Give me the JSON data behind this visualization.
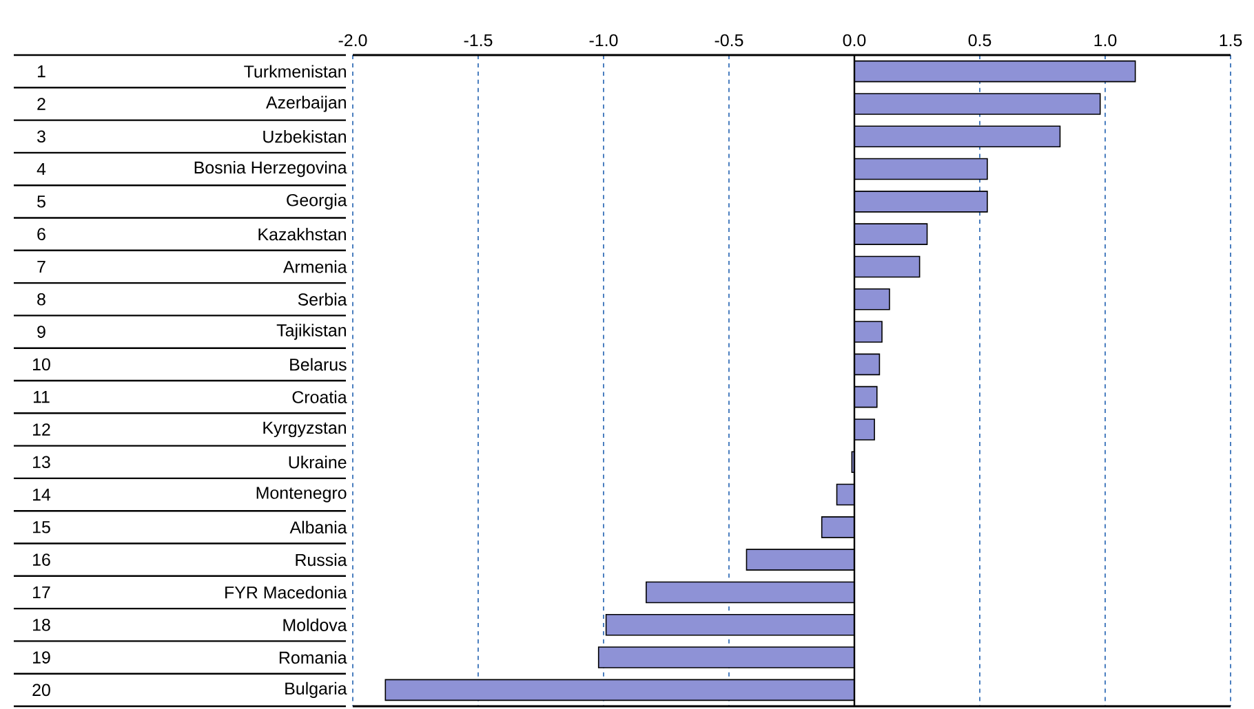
{
  "chart_data": {
    "type": "bar",
    "orientation": "horizontal",
    "categories": [
      "Turkmenistan",
      "Azerbaijan",
      "Uzbekistan",
      "Bosnia Herzegovina",
      "Georgia",
      "Kazakhstan",
      "Armenia",
      "Serbia",
      "Tajikistan",
      "Belarus",
      "Croatia",
      "Kyrgyzstan",
      "Ukraine",
      "Montenegro",
      "Albania",
      "Russia",
      "FYR Macedonia",
      "Moldova",
      "Romania",
      "Bulgaria"
    ],
    "values": [
      1.12,
      0.98,
      0.82,
      0.53,
      0.53,
      0.29,
      0.26,
      0.14,
      0.11,
      0.1,
      0.09,
      0.08,
      -0.01,
      -0.07,
      -0.13,
      -0.43,
      -0.83,
      -0.99,
      -1.02,
      -1.87
    ],
    "color": "#8e92d6",
    "xlim": [
      -2.0,
      1.5
    ],
    "xticks": [
      {
        "value": -2.0,
        "label": "-2.0"
      },
      {
        "value": -1.5,
        "label": "-1.5"
      },
      {
        "value": -1.0,
        "label": "-1.0"
      },
      {
        "value": -0.5,
        "label": "-0.5"
      },
      {
        "value": 0.0,
        "label": "0.0"
      },
      {
        "value": 0.5,
        "label": "0.5"
      },
      {
        "value": 1.0,
        "label": "1.0"
      },
      {
        "value": 1.5,
        "label": "1.5"
      }
    ],
    "grid": "x",
    "annotations": [
      "1",
      "2",
      "3",
      "4",
      "5",
      "6",
      "7",
      "8",
      "9",
      "10",
      "11",
      "12",
      "13",
      "14",
      "15",
      "16",
      "17",
      "18",
      "19",
      "20"
    ]
  }
}
